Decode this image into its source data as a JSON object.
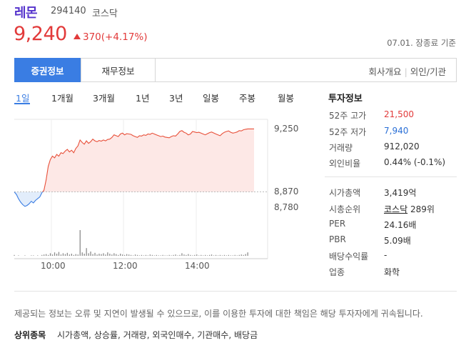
{
  "header": {
    "name": "레몬",
    "code": "294140",
    "market": "코스닥"
  },
  "price": {
    "current": "9,240",
    "change": "370(+4.17%)",
    "as_of": "07.01. 장종료 기준"
  },
  "tabs": {
    "stock_info": "증권정보",
    "financial_info": "재무정보",
    "company_info": "회사개요",
    "foreign_inst": "외인/기관"
  },
  "periods": [
    "1일",
    "1개월",
    "3개월",
    "1년",
    "3년",
    "일봉",
    "주봉",
    "월봉"
  ],
  "chart_data": {
    "type": "area",
    "title": "",
    "y_ticks": [
      "9,250",
      "8,870",
      "8,780"
    ],
    "x_ticks": [
      "10:00",
      "12:00",
      "14:00"
    ],
    "reference_price": 8870,
    "ylim": [
      8780,
      9250
    ],
    "price_series": [
      8870,
      8855,
      8830,
      8810,
      8795,
      8785,
      8790,
      8800,
      8815,
      8805,
      8820,
      8830,
      8840,
      8865,
      8880,
      8940,
      9020,
      9060,
      9080,
      9070,
      9090,
      9080,
      9100,
      9095,
      9110,
      9120,
      9105,
      9115,
      9100,
      9125,
      9140,
      9175,
      9160,
      9150,
      9170,
      9155,
      9165,
      9180,
      9170,
      9165,
      9172,
      9168,
      9175,
      9170,
      9178,
      9180,
      9190,
      9205,
      9200,
      9195,
      9210,
      9215,
      9205,
      9212,
      9210,
      9208,
      9200,
      9195,
      9190,
      9200,
      9198,
      9205,
      9202,
      9210,
      9208,
      9215,
      9210,
      9205,
      9200,
      9195,
      9198,
      9192,
      9190,
      9188,
      9195,
      9200,
      9198,
      9210,
      9225,
      9230,
      9220,
      9215,
      9205,
      9210,
      9225,
      9222,
      9218,
      9220,
      9215,
      9210,
      9205,
      9212,
      9218,
      9222,
      9216,
      9210,
      9205,
      9200,
      9212,
      9220,
      9225,
      9228,
      9220,
      9215,
      9218,
      9222,
      9230,
      9228,
      9235,
      9238,
      9240,
      9240,
      9240,
      9240
    ],
    "volume_series": [
      2,
      0,
      1,
      0,
      0,
      1,
      0,
      0,
      1,
      1,
      0,
      1,
      0,
      2,
      3,
      4,
      2,
      6,
      3,
      8,
      5,
      9,
      3,
      6,
      4,
      7,
      3,
      5,
      2,
      4,
      3,
      60,
      8,
      5,
      18,
      6,
      10,
      4,
      7,
      3,
      5,
      4,
      6,
      3,
      8,
      5,
      3,
      6,
      4,
      2,
      5,
      3,
      2,
      4,
      3,
      2,
      1,
      3,
      2,
      1,
      2,
      1,
      2,
      1,
      3,
      2,
      1,
      2,
      1,
      1,
      2,
      1,
      1,
      2,
      1,
      2,
      3,
      1,
      2,
      6,
      3,
      2,
      4,
      2,
      1,
      2,
      3,
      1,
      2,
      1,
      2,
      1,
      2,
      3,
      1,
      2,
      1,
      2,
      1,
      2,
      1,
      2,
      1,
      1,
      2,
      1,
      2,
      3,
      2,
      4,
      8,
      0,
      0,
      0
    ],
    "colors": {
      "up": "#e8503a",
      "down": "#3a7de3",
      "up_fill": "#fde8e6",
      "down_fill": "#e2edfb",
      "volume": "#8c8c8c"
    }
  },
  "investment": {
    "title": "투자정보",
    "high52_label": "52주 고가",
    "high52": "21,500",
    "low52_label": "52주 저가",
    "low52": "7,940",
    "volume_label": "거래량",
    "volume": "912,020",
    "foreign_label": "외인비율",
    "foreign": "0.44% (-0.1%)",
    "mcap_label": "시가총액",
    "mcap": "3,419억",
    "rank_label": "시총순위",
    "rank_market": "코스닥",
    "rank": "289위",
    "per_label": "PER",
    "per": "24.16배",
    "pbr_label": "PBR",
    "pbr": "5.09배",
    "div_label": "배당수익률",
    "div": "-",
    "sector_label": "업종",
    "sector": "화학"
  },
  "footer": {
    "notice": "제공되는 정보는 오류 및 지연이 발생될 수 있으므로, 이를 이용한 투자에 대한 책임은 해당 투자자에게 귀속됩니다.",
    "top_label": "상위종목",
    "top_links": [
      "시가총액",
      "상승률",
      "거래량",
      "외국인매수",
      "기관매수",
      "배당금"
    ]
  }
}
